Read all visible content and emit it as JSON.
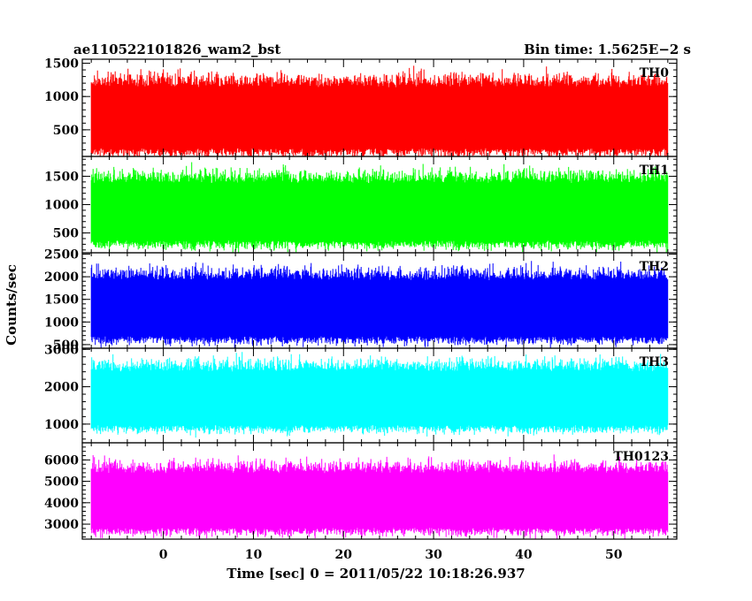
{
  "header": {
    "left_title": "ae110522101826_wam2_bst",
    "right_title": "Bin time: 1.5625E−2 s"
  },
  "chart_data": {
    "type": "line",
    "title": "ae110522101826_wam2_bst",
    "subtitle": "Bin time: 1.5625E−2 s",
    "xlabel": "Time [sec] 0 = 2011/05/22 10:18:26.937",
    "ylabel": "Counts/sec",
    "xlim": [
      -9,
      57
    ],
    "data_x_range": [
      -8,
      56
    ],
    "x_ticks": [
      0,
      10,
      20,
      30,
      40,
      50
    ],
    "x_tick_labels": [
      "0",
      "10",
      "20",
      "30",
      "40",
      "50"
    ],
    "panels": [
      {
        "name": "TH0",
        "color": "#ff0000",
        "ylim": [
          100,
          1560
        ],
        "y_ticks": [
          500,
          1000,
          1500
        ],
        "y_tick_labels": [
          "500",
          "1000",
          "1500"
        ],
        "mean": 750,
        "low": 150,
        "high": 1550
      },
      {
        "name": "TH1",
        "color": "#00ff00",
        "ylim": [
          150,
          1850
        ],
        "y_ticks": [
          500,
          1000,
          1500
        ],
        "y_tick_labels": [
          "500",
          "1000",
          "1500"
        ],
        "mean": 950,
        "low": 250,
        "high": 1800
      },
      {
        "name": "TH2",
        "color": "#0000ff",
        "ylim": [
          420,
          2530
        ],
        "y_ticks": [
          500,
          1000,
          1500,
          2000,
          2500
        ],
        "y_tick_labels": [
          "500",
          "1000",
          "1500",
          "2000",
          "2500"
        ],
        "mean": 1400,
        "low": 600,
        "high": 2500
      },
      {
        "name": "TH3",
        "color": "#00ffff",
        "ylim": [
          500,
          3030
        ],
        "y_ticks": [
          1000,
          2000,
          3000
        ],
        "y_tick_labels": [
          "1000",
          "2000",
          "3000"
        ],
        "mean": 1800,
        "low": 800,
        "high": 3000
      },
      {
        "name": "TH0123",
        "color": "#ff00ff",
        "ylim": [
          2300,
          6800
        ],
        "y_ticks": [
          3000,
          4000,
          5000,
          6000
        ],
        "y_tick_labels": [
          "3000",
          "4000",
          "5000",
          "6000"
        ],
        "mean": 4300,
        "low": 2700,
        "high": 6600
      }
    ]
  }
}
